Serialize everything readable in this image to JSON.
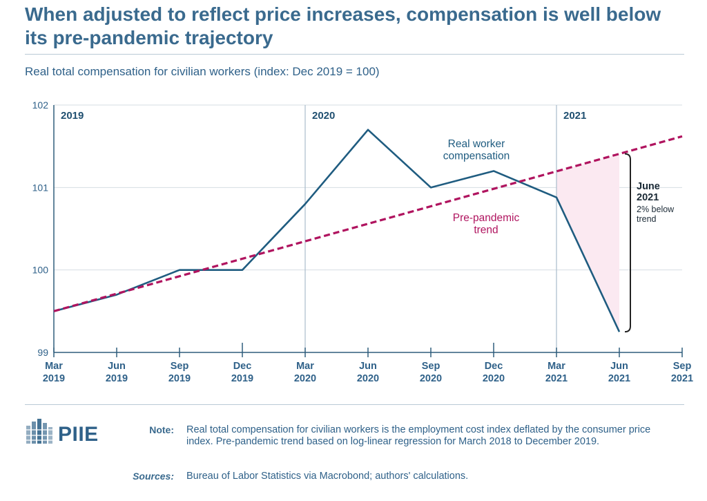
{
  "header": {
    "title": "When adjusted to reflect price increases, compensation is well below its pre-pandemic trajectory",
    "subtitle": "Real total compensation for civilian workers (index: Dec 2019 = 100)"
  },
  "chart_data": {
    "type": "line",
    "title": "When adjusted to reflect price increases, compensation is well below its pre-pandemic trajectory",
    "subtitle": "Real total compensation for civilian workers (index: Dec 2019 = 100)",
    "xlabel": "",
    "ylabel": "",
    "x_ticks": [
      [
        "Mar",
        "2019"
      ],
      [
        "Jun",
        "2019"
      ],
      [
        "Sep",
        "2019"
      ],
      [
        "Dec",
        "2019"
      ],
      [
        "Mar",
        "2020"
      ],
      [
        "Jun",
        "2020"
      ],
      [
        "Sep",
        "2020"
      ],
      [
        "Dec",
        "2020"
      ],
      [
        "Mar",
        "2021"
      ],
      [
        "Jun",
        "2021"
      ],
      [
        "Sep",
        "2021"
      ]
    ],
    "y_ticks": [
      "99",
      "100",
      "101",
      "102"
    ],
    "ylim": [
      99,
      102
    ],
    "grid": true,
    "year_markers": [
      {
        "label": "2019",
        "at": "Mar 2019"
      },
      {
        "label": "2020",
        "at": "Mar 2020"
      },
      {
        "label": "2021",
        "at": "Mar 2021"
      }
    ],
    "series": [
      {
        "name": "Real worker compensation",
        "label_lines": [
          "Real worker",
          "compensation"
        ],
        "color": "#1f5c80",
        "style": "solid",
        "x": [
          "Mar 2019",
          "Jun 2019",
          "Sep 2019",
          "Dec 2019",
          "Mar 2020",
          "Jun 2020",
          "Sep 2020",
          "Dec 2020",
          "Mar 2021",
          "Jun 2021"
        ],
        "values": [
          99.5,
          99.7,
          100.0,
          100.0,
          100.8,
          101.7,
          101.0,
          101.2,
          100.88,
          99.25
        ]
      },
      {
        "name": "Pre-pandemic trend",
        "label_lines": [
          "Pre-pandemic",
          "trend"
        ],
        "color": "#b0145f",
        "style": "dashed",
        "x": [
          "Mar 2019",
          "Sep 2021"
        ],
        "values": [
          99.5,
          101.62
        ]
      }
    ],
    "shaded_gap": {
      "from": "Mar 2021",
      "to": "Jun 2021",
      "color": "#fbe9f1"
    },
    "annotation": {
      "title_lines": [
        "June",
        "2021"
      ],
      "detail_lines": [
        "2% below",
        "trend"
      ]
    }
  },
  "footer": {
    "logo_text": "PIIE",
    "note_label": "Note:",
    "note_text": "Real total compensation for civilian workers is the employment cost index deflated by the consumer price index. Pre-pandemic trend based on log-linear regression for March 2018 to December 2019.",
    "sources_label": "Sources:",
    "sources_text": "Bureau of Labor Statistics via Macrobond; authors' calculations."
  }
}
